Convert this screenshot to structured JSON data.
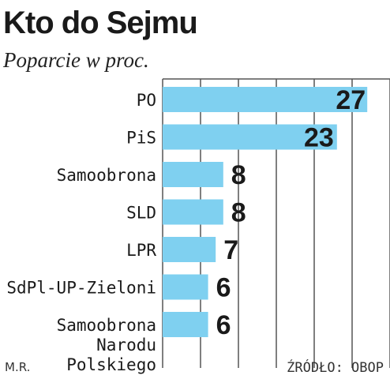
{
  "header": {
    "title": "Kto do Sejmu",
    "subtitle": "Poparcie w proc."
  },
  "footer": {
    "author": "M.R.",
    "source": "ŹRÓDŁO: OBOP"
  },
  "colors": {
    "bar": "#7fd0f0",
    "grid": "#555555",
    "highlight_value": "#d83a5a",
    "text": "#1a1a1a"
  },
  "chart_data": {
    "type": "bar",
    "orientation": "horizontal",
    "categories": [
      [
        "PO"
      ],
      [
        "PiS"
      ],
      [
        "Samoobrona"
      ],
      [
        "SLD"
      ],
      [
        "LPR"
      ],
      [
        "SdPl-UP-Zieloni"
      ],
      [
        "Samoobrona",
        "Narodu",
        "Polskiego"
      ]
    ],
    "values": [
      27,
      23,
      8,
      8,
      7,
      6,
      6
    ],
    "value_labels": [
      "27",
      "23",
      "8",
      "8",
      "7",
      "6",
      "6"
    ],
    "highlight_index": 0,
    "xlim": [
      0,
      30
    ],
    "grid": true
  }
}
